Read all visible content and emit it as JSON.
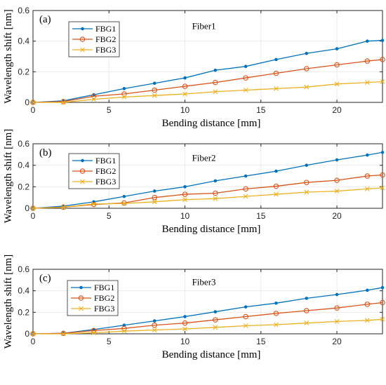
{
  "chart_data": [
    {
      "type": "line",
      "panel_label": "(a)",
      "title": "Fiber1",
      "xlabel": "Bending distance [mm]",
      "ylabel": "Wavelength shift [nm]",
      "xlim": [
        0,
        23
      ],
      "ylim": [
        0,
        0.6
      ],
      "xticks": [
        0,
        5,
        10,
        15,
        20
      ],
      "yticks": [
        0,
        0.2,
        0.4,
        0.6
      ],
      "grid": true,
      "legend_position": "top-left",
      "x": [
        0,
        2,
        4,
        6,
        8,
        10,
        12,
        14,
        16,
        18,
        20,
        22,
        23
      ],
      "series": [
        {
          "name": "FBG1",
          "color": "#0072BD",
          "marker": "dot",
          "values": [
            0,
            0.01,
            0.05,
            0.09,
            0.125,
            0.16,
            0.21,
            0.235,
            0.28,
            0.32,
            0.35,
            0.4,
            0.405
          ]
        },
        {
          "name": "FBG2",
          "color": "#D95319",
          "marker": "circle",
          "values": [
            0,
            0.005,
            0.04,
            0.055,
            0.08,
            0.105,
            0.13,
            0.16,
            0.19,
            0.22,
            0.245,
            0.27,
            0.28
          ]
        },
        {
          "name": "FBG3",
          "color": "#EDB120",
          "marker": "x",
          "values": [
            0,
            0.0,
            0.02,
            0.035,
            0.045,
            0.055,
            0.07,
            0.08,
            0.09,
            0.1,
            0.12,
            0.13,
            0.135
          ]
        }
      ]
    },
    {
      "type": "line",
      "panel_label": "(b)",
      "title": "Fiber2",
      "xlabel": "Bending distance [mm]",
      "ylabel": "Wavelength shift [nm]",
      "xlim": [
        0,
        23
      ],
      "ylim": [
        0,
        0.6
      ],
      "xticks": [
        0,
        5,
        10,
        15,
        20
      ],
      "yticks": [
        0,
        0.2,
        0.4,
        0.6
      ],
      "grid": true,
      "legend_position": "top-left",
      "x": [
        0,
        2,
        4,
        6,
        8,
        10,
        12,
        14,
        16,
        18,
        20,
        22,
        23
      ],
      "series": [
        {
          "name": "FBG1",
          "color": "#0072BD",
          "marker": "dot",
          "values": [
            0,
            0.02,
            0.06,
            0.11,
            0.16,
            0.2,
            0.255,
            0.3,
            0.345,
            0.4,
            0.45,
            0.495,
            0.52
          ]
        },
        {
          "name": "FBG2",
          "color": "#D95319",
          "marker": "circle",
          "values": [
            0,
            0.01,
            0.035,
            0.05,
            0.1,
            0.13,
            0.14,
            0.18,
            0.205,
            0.24,
            0.26,
            0.3,
            0.31
          ]
        },
        {
          "name": "FBG3",
          "color": "#EDB120",
          "marker": "x",
          "values": [
            0,
            0.01,
            0.04,
            0.045,
            0.06,
            0.08,
            0.09,
            0.11,
            0.13,
            0.15,
            0.16,
            0.18,
            0.19
          ]
        }
      ]
    },
    {
      "type": "line",
      "panel_label": "(c)",
      "title": "Fiber3",
      "xlabel": "Bending distance [mm]",
      "ylabel": "Wavelength shift [nm]",
      "xlim": [
        0,
        23
      ],
      "ylim": [
        0,
        0.6
      ],
      "xticks": [
        0,
        5,
        10,
        15,
        20
      ],
      "yticks": [
        0,
        0.2,
        0.4,
        0.6
      ],
      "grid": true,
      "legend_position": "top-left",
      "x": [
        0,
        2,
        4,
        6,
        8,
        10,
        12,
        14,
        16,
        18,
        20,
        22,
        23
      ],
      "series": [
        {
          "name": "FBG1",
          "color": "#0072BD",
          "marker": "dot",
          "values": [
            0,
            0.005,
            0.04,
            0.08,
            0.12,
            0.16,
            0.205,
            0.25,
            0.285,
            0.33,
            0.365,
            0.405,
            0.43
          ]
        },
        {
          "name": "FBG2",
          "color": "#D95319",
          "marker": "circle",
          "values": [
            0,
            0.005,
            0.03,
            0.05,
            0.08,
            0.1,
            0.13,
            0.16,
            0.19,
            0.215,
            0.24,
            0.275,
            0.29
          ]
        },
        {
          "name": "FBG3",
          "color": "#EDB120",
          "marker": "x",
          "values": [
            0,
            0.0,
            0.01,
            0.025,
            0.035,
            0.045,
            0.06,
            0.075,
            0.085,
            0.1,
            0.115,
            0.125,
            0.135
          ]
        }
      ]
    }
  ]
}
